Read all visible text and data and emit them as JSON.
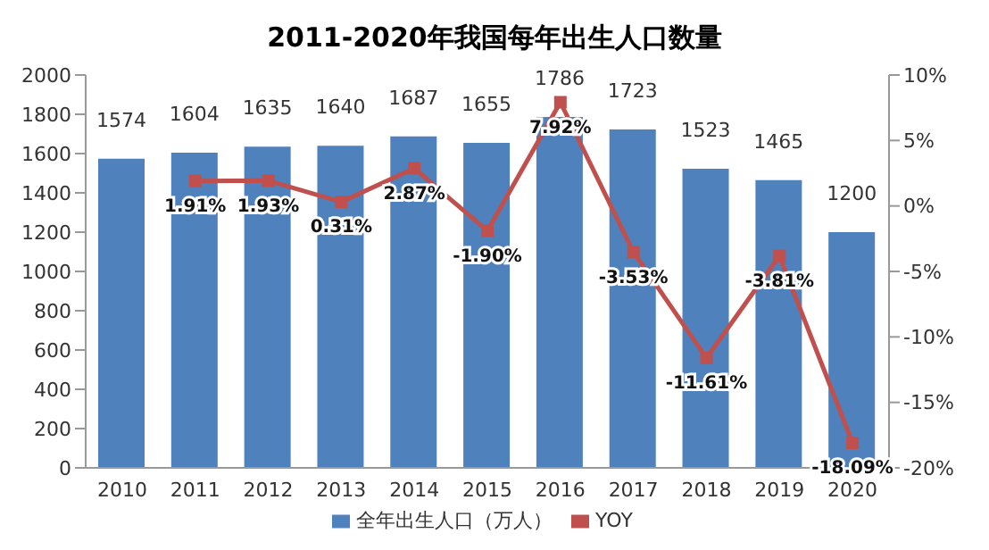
{
  "chart_data": {
    "type": "bar",
    "title": "2011-2020年我国每年出生人口数量",
    "categories": [
      "2010",
      "2011",
      "2012",
      "2013",
      "2014",
      "2015",
      "2016",
      "2017",
      "2018",
      "2019",
      "2020"
    ],
    "series": [
      {
        "name": "全年出生人口（万人）",
        "color": "#4f81bd",
        "values": [
          1574,
          1604,
          1635,
          1640,
          1687,
          1655,
          1786,
          1723,
          1523,
          1465,
          1200
        ],
        "value_labels": [
          "1574",
          "1604",
          "1635",
          "1640",
          "1687",
          "1655",
          "1786",
          "1723",
          "1523",
          "1465",
          "1200"
        ]
      },
      {
        "name": "YOY",
        "type": "line",
        "axis": "y2",
        "color": "#c0504d",
        "marker": "square",
        "values": [
          null,
          1.91,
          1.93,
          0.31,
          2.87,
          -1.9,
          7.92,
          -3.53,
          -11.61,
          -3.81,
          -18.09
        ],
        "value_labels": [
          null,
          "1.91%",
          "1.93%",
          "0.31%",
          "2.87%",
          "-1.90%",
          "7.92%",
          "-3.53%",
          "-11.61%",
          "-3.81%",
          "-18.09%"
        ]
      }
    ],
    "ylim": [
      0,
      2000
    ],
    "yticks": [
      0,
      200,
      400,
      600,
      800,
      1000,
      1200,
      1400,
      1600,
      1800,
      2000
    ],
    "y2lim": [
      -20,
      10
    ],
    "y2ticks": [
      {
        "value": -20,
        "label": "-20%"
      },
      {
        "value": -15,
        "label": "-15%"
      },
      {
        "value": -10,
        "label": "-10%"
      },
      {
        "value": -5,
        "label": "-5%"
      },
      {
        "value": 0,
        "label": "0%"
      },
      {
        "value": 5,
        "label": "5%"
      },
      {
        "value": 10,
        "label": "10%"
      }
    ],
    "grid": false,
    "legend": "bottom"
  }
}
